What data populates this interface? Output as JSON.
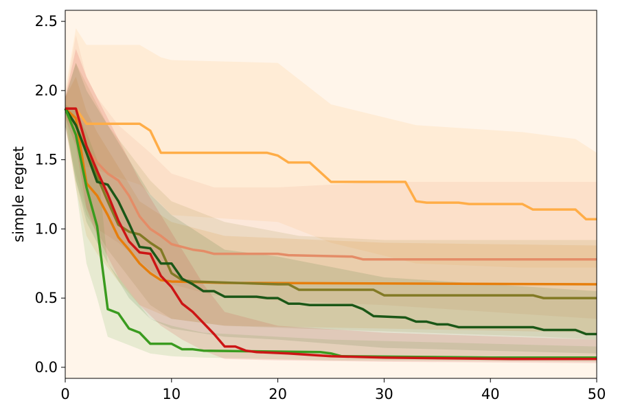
{
  "chart_data": {
    "type": "line",
    "xlabel": "",
    "ylabel": "simple regret",
    "xlim": [
      0,
      50
    ],
    "ylim": [
      -0.08,
      2.58
    ],
    "xticks": [
      0,
      10,
      20,
      30,
      40,
      50
    ],
    "xtick_labels": [
      "0",
      "10",
      "20",
      "30",
      "40",
      "50"
    ],
    "yticks": [
      0.0,
      0.5,
      1.0,
      1.5,
      2.0,
      2.5
    ],
    "ytick_labels": [
      "0.0",
      "0.5",
      "1.0",
      "1.5",
      "2.0",
      "2.5"
    ],
    "grid": false,
    "legend": "none",
    "plot_background": "#fff5ea",
    "series": [
      {
        "color": "#ffad47",
        "values": [
          [
            0,
            1.87
          ],
          [
            1,
            1.87
          ],
          [
            2,
            1.76
          ],
          [
            7,
            1.76
          ],
          [
            8,
            1.71
          ],
          [
            9,
            1.55
          ],
          [
            19,
            1.55
          ],
          [
            20,
            1.53
          ],
          [
            21,
            1.48
          ],
          [
            23,
            1.48
          ],
          [
            25,
            1.34
          ],
          [
            32,
            1.34
          ],
          [
            33,
            1.2
          ],
          [
            34,
            1.19
          ],
          [
            37,
            1.19
          ],
          [
            38,
            1.18
          ],
          [
            43,
            1.18
          ],
          [
            44,
            1.14
          ],
          [
            48,
            1.14
          ],
          [
            49,
            1.07
          ],
          [
            50,
            1.07
          ]
        ],
        "band": [
          [
            0,
            2.0,
            1.8
          ],
          [
            1,
            2.45,
            1.7
          ],
          [
            2,
            2.33,
            1.45
          ],
          [
            7,
            2.33,
            1.32
          ],
          [
            9,
            2.24,
            1.18
          ],
          [
            10,
            2.22,
            1.1
          ],
          [
            20,
            2.2,
            1.05
          ],
          [
            25,
            1.9,
            0.9
          ],
          [
            33,
            1.75,
            0.75
          ],
          [
            43,
            1.7,
            0.72
          ],
          [
            48,
            1.65,
            0.72
          ],
          [
            50,
            1.55,
            0.72
          ]
        ]
      },
      {
        "color": "#e48c67",
        "values": [
          [
            0,
            1.87
          ],
          [
            1,
            1.87
          ],
          [
            2,
            1.58
          ],
          [
            3,
            1.48
          ],
          [
            4,
            1.4
          ],
          [
            5,
            1.35
          ],
          [
            6,
            1.24
          ],
          [
            7,
            1.09
          ],
          [
            8,
            1.0
          ],
          [
            9,
            0.95
          ],
          [
            10,
            0.89
          ],
          [
            11,
            0.87
          ],
          [
            12,
            0.85
          ],
          [
            13,
            0.84
          ],
          [
            14,
            0.82
          ],
          [
            20,
            0.82
          ],
          [
            21,
            0.81
          ],
          [
            27,
            0.8
          ],
          [
            28,
            0.78
          ],
          [
            50,
            0.78
          ]
        ],
        "band": [
          [
            0,
            1.95,
            1.75
          ],
          [
            1,
            2.4,
            1.4
          ],
          [
            2,
            2.1,
            1.15
          ],
          [
            3,
            1.95,
            1.0
          ],
          [
            5,
            1.75,
            0.9
          ],
          [
            8,
            1.55,
            0.7
          ],
          [
            10,
            1.4,
            0.6
          ],
          [
            14,
            1.3,
            0.52
          ],
          [
            20,
            1.3,
            0.48
          ],
          [
            30,
            1.34,
            0.45
          ],
          [
            40,
            1.34,
            0.4
          ],
          [
            50,
            1.34,
            0.35
          ]
        ]
      },
      {
        "color": "#e67e0c",
        "values": [
          [
            0,
            1.87
          ],
          [
            1,
            1.8
          ],
          [
            2,
            1.33
          ],
          [
            3,
            1.24
          ],
          [
            4,
            1.1
          ],
          [
            5,
            0.94
          ],
          [
            6,
            0.85
          ],
          [
            7,
            0.75
          ],
          [
            8,
            0.68
          ],
          [
            9,
            0.63
          ],
          [
            10,
            0.62
          ],
          [
            15,
            0.61
          ],
          [
            50,
            0.6
          ]
        ],
        "band": [
          [
            0,
            1.95,
            1.75
          ],
          [
            1,
            2.1,
            1.3
          ],
          [
            2,
            1.85,
            0.95
          ],
          [
            3,
            1.7,
            0.82
          ],
          [
            5,
            1.45,
            0.62
          ],
          [
            7,
            1.2,
            0.45
          ],
          [
            10,
            1.05,
            0.35
          ],
          [
            15,
            0.95,
            0.3
          ],
          [
            30,
            0.9,
            0.28
          ],
          [
            50,
            0.88,
            0.25
          ]
        ]
      },
      {
        "color": "#827a25",
        "values": [
          [
            0,
            1.87
          ],
          [
            1,
            1.75
          ],
          [
            2,
            1.55
          ],
          [
            3,
            1.38
          ],
          [
            4,
            1.2
          ],
          [
            5,
            1.03
          ],
          [
            6,
            0.98
          ],
          [
            7,
            0.96
          ],
          [
            8,
            0.9
          ],
          [
            9,
            0.85
          ],
          [
            10,
            0.68
          ],
          [
            11,
            0.63
          ],
          [
            12,
            0.62
          ],
          [
            20,
            0.6
          ],
          [
            21,
            0.6
          ],
          [
            22,
            0.56
          ],
          [
            29,
            0.56
          ],
          [
            30,
            0.52
          ],
          [
            44,
            0.52
          ],
          [
            45,
            0.5
          ],
          [
            50,
            0.5
          ]
        ],
        "band": [
          [
            0,
            1.95,
            1.75
          ],
          [
            1,
            2.2,
            1.35
          ],
          [
            2,
            2.05,
            1.1
          ],
          [
            4,
            1.75,
            0.85
          ],
          [
            6,
            1.55,
            0.65
          ],
          [
            8,
            1.35,
            0.45
          ],
          [
            10,
            1.2,
            0.35
          ],
          [
            15,
            1.05,
            0.3
          ],
          [
            22,
            0.95,
            0.28
          ],
          [
            30,
            0.92,
            0.26
          ],
          [
            45,
            0.92,
            0.22
          ],
          [
            50,
            0.92,
            0.2
          ]
        ]
      },
      {
        "color": "#1b5717",
        "values": [
          [
            0,
            1.87
          ],
          [
            1,
            1.75
          ],
          [
            2,
            1.55
          ],
          [
            3,
            1.34
          ],
          [
            4,
            1.32
          ],
          [
            5,
            1.2
          ],
          [
            6,
            1.04
          ],
          [
            7,
            0.87
          ],
          [
            8,
            0.86
          ],
          [
            9,
            0.75
          ],
          [
            10,
            0.75
          ],
          [
            11,
            0.64
          ],
          [
            12,
            0.6
          ],
          [
            13,
            0.55
          ],
          [
            14,
            0.55
          ],
          [
            15,
            0.51
          ],
          [
            18,
            0.51
          ],
          [
            19,
            0.5
          ],
          [
            20,
            0.5
          ],
          [
            21,
            0.46
          ],
          [
            22,
            0.46
          ],
          [
            23,
            0.45
          ],
          [
            27,
            0.45
          ],
          [
            28,
            0.42
          ],
          [
            29,
            0.37
          ],
          [
            32,
            0.36
          ],
          [
            33,
            0.33
          ],
          [
            34,
            0.33
          ],
          [
            35,
            0.31
          ],
          [
            36,
            0.31
          ],
          [
            37,
            0.29
          ],
          [
            44,
            0.29
          ],
          [
            45,
            0.27
          ],
          [
            48,
            0.27
          ],
          [
            49,
            0.24
          ],
          [
            50,
            0.24
          ]
        ],
        "band": [
          [
            0,
            1.95,
            1.75
          ],
          [
            1,
            2.2,
            1.35
          ],
          [
            2,
            2.0,
            1.05
          ],
          [
            4,
            1.75,
            0.75
          ],
          [
            6,
            1.5,
            0.5
          ],
          [
            8,
            1.25,
            0.35
          ],
          [
            10,
            1.1,
            0.28
          ],
          [
            15,
            0.85,
            0.22
          ],
          [
            20,
            0.8,
            0.2
          ],
          [
            30,
            0.65,
            0.14
          ],
          [
            40,
            0.6,
            0.12
          ],
          [
            50,
            0.55,
            0.1
          ]
        ]
      },
      {
        "color": "#3a9b1f",
        "values": [
          [
            0,
            1.87
          ],
          [
            1,
            1.68
          ],
          [
            2,
            1.3
          ],
          [
            3,
            1.02
          ],
          [
            4,
            0.42
          ],
          [
            5,
            0.39
          ],
          [
            6,
            0.28
          ],
          [
            7,
            0.25
          ],
          [
            8,
            0.17
          ],
          [
            10,
            0.17
          ],
          [
            11,
            0.13
          ],
          [
            12,
            0.13
          ],
          [
            13,
            0.12
          ],
          [
            24,
            0.11
          ],
          [
            25,
            0.1
          ],
          [
            26,
            0.08
          ],
          [
            40,
            0.07
          ],
          [
            50,
            0.07
          ]
        ],
        "band": [
          [
            0,
            1.9,
            1.85
          ],
          [
            1,
            1.85,
            1.3
          ],
          [
            2,
            1.7,
            0.75
          ],
          [
            3,
            1.5,
            0.5
          ],
          [
            4,
            0.75,
            0.22
          ],
          [
            6,
            0.55,
            0.16
          ],
          [
            8,
            0.35,
            0.1
          ],
          [
            10,
            0.3,
            0.08
          ],
          [
            13,
            0.25,
            0.07
          ],
          [
            25,
            0.2,
            0.05
          ],
          [
            50,
            0.15,
            0.04
          ]
        ]
      },
      {
        "color": "#cc1515",
        "values": [
          [
            0,
            1.87
          ],
          [
            1,
            1.87
          ],
          [
            2,
            1.6
          ],
          [
            3,
            1.42
          ],
          [
            4,
            1.25
          ],
          [
            5,
            1.06
          ],
          [
            6,
            0.91
          ],
          [
            7,
            0.83
          ],
          [
            8,
            0.82
          ],
          [
            9,
            0.66
          ],
          [
            10,
            0.58
          ],
          [
            11,
            0.46
          ],
          [
            12,
            0.4
          ],
          [
            13,
            0.32
          ],
          [
            14,
            0.24
          ],
          [
            15,
            0.15
          ],
          [
            16,
            0.15
          ],
          [
            17,
            0.12
          ],
          [
            18,
            0.11
          ],
          [
            21,
            0.1
          ],
          [
            23,
            0.09
          ],
          [
            25,
            0.08
          ],
          [
            30,
            0.07
          ],
          [
            42,
            0.06
          ],
          [
            50,
            0.06
          ]
        ],
        "band": [
          [
            0,
            1.95,
            1.8
          ],
          [
            1,
            2.3,
            1.6
          ],
          [
            2,
            2.1,
            1.15
          ],
          [
            3,
            1.95,
            0.95
          ],
          [
            5,
            1.65,
            0.65
          ],
          [
            7,
            1.35,
            0.45
          ],
          [
            9,
            1.1,
            0.3
          ],
          [
            11,
            0.85,
            0.2
          ],
          [
            13,
            0.6,
            0.12
          ],
          [
            15,
            0.4,
            0.06
          ],
          [
            20,
            0.3,
            0.05
          ],
          [
            30,
            0.25,
            0.04
          ],
          [
            50,
            0.2,
            0.03
          ]
        ]
      }
    ]
  }
}
